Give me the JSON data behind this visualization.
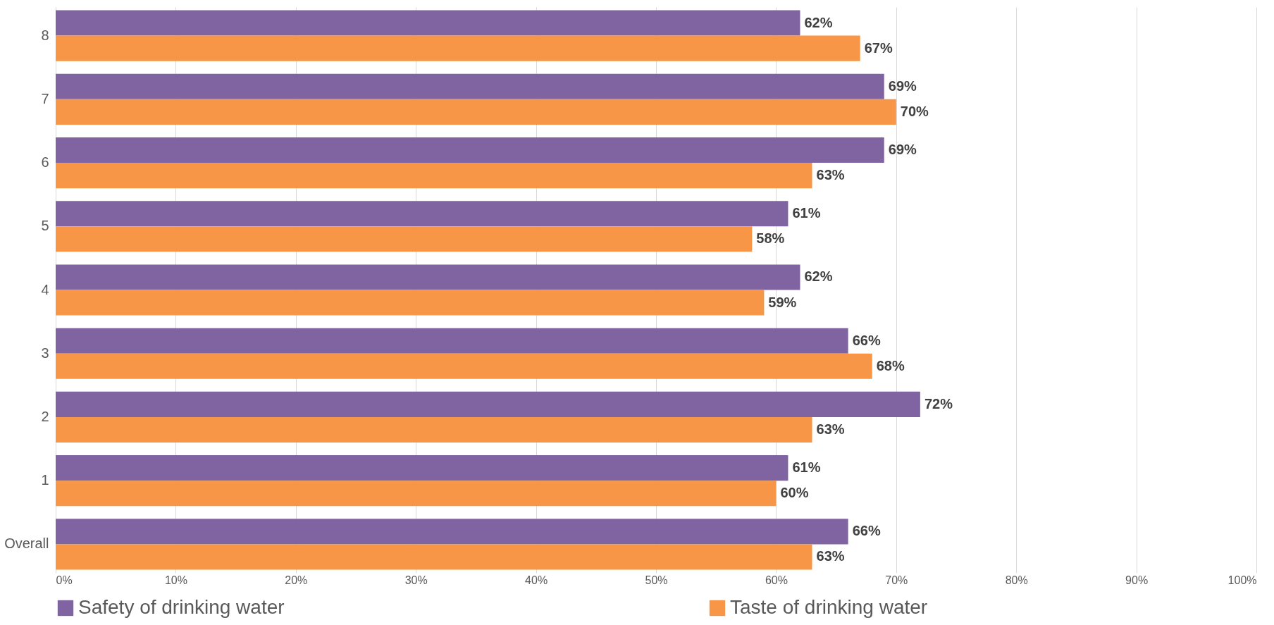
{
  "chart_data": {
    "type": "bar",
    "orientation": "horizontal",
    "categories": [
      "8",
      "7",
      "6",
      "5",
      "4",
      "3",
      "2",
      "1",
      "Overall"
    ],
    "series": [
      {
        "name": "Safety of drinking water",
        "color": "#8064a2",
        "values": [
          62,
          69,
          69,
          61,
          62,
          66,
          72,
          61,
          66
        ],
        "value_labels": [
          "62%",
          "69%",
          "69%",
          "61%",
          "62%",
          "66%",
          "72%",
          "61%",
          "66%"
        ]
      },
      {
        "name": "Taste of drinking water",
        "color": "#f79646",
        "values": [
          67,
          70,
          63,
          58,
          59,
          68,
          63,
          60,
          63
        ],
        "value_labels": [
          "67%",
          "70%",
          "63%",
          "58%",
          "59%",
          "68%",
          "63%",
          "60%",
          "63%"
        ]
      }
    ],
    "xlim": [
      0,
      100
    ],
    "xticks": [
      {
        "value": 0,
        "label": "0%"
      },
      {
        "value": 10,
        "label": "10%"
      },
      {
        "value": 20,
        "label": "20%"
      },
      {
        "value": 30,
        "label": "30%"
      },
      {
        "value": 40,
        "label": "40%"
      },
      {
        "value": 50,
        "label": "50%"
      },
      {
        "value": 60,
        "label": "60%"
      },
      {
        "value": 70,
        "label": "70%"
      },
      {
        "value": 80,
        "label": "80%"
      },
      {
        "value": 90,
        "label": "90%"
      },
      {
        "value": 100,
        "label": "100%"
      }
    ],
    "grid": "x",
    "legend": "bottom"
  }
}
